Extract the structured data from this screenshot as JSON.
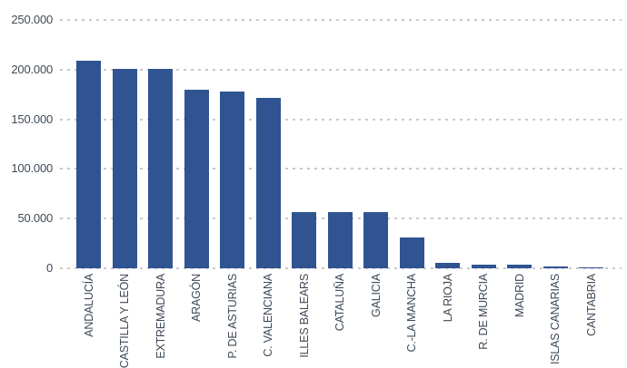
{
  "chart_data": {
    "type": "bar",
    "title": "",
    "xlabel": "",
    "ylabel": "",
    "categories": [
      "ANDALUCÍA",
      "CASTILLA Y LEÓN",
      "EXTREMADURA",
      "ARAGÓN",
      "P. DE ASTURIAS",
      "C. VALENCIANA",
      "ILLES BALEARS",
      "CATALUÑA",
      "GALICIA",
      "C.-LA MANCHA",
      "LA RIOJA",
      "R. DE MURCIA",
      "MADRID",
      "ISLAS CANARIAS",
      "CANTABRIA"
    ],
    "values": [
      209000,
      200500,
      200500,
      179500,
      177500,
      171500,
      56500,
      56500,
      56500,
      31000,
      5500,
      4000,
      4000,
      1500,
      1000
    ],
    "ylim": [
      0,
      250000
    ],
    "yticks": [
      {
        "label": "250.000",
        "value": 250000
      },
      {
        "label": "200.000",
        "value": 200000
      },
      {
        "label": "150.000",
        "value": 150000
      },
      {
        "label": "100.000",
        "value": 100000
      },
      {
        "label": "50.000",
        "value": 50000
      },
      {
        "label": "0",
        "value": 0
      }
    ],
    "grid": "horizontal-dashed",
    "legend": "none",
    "x_label_orientation": "vertical-bottom-to-top",
    "colors": {
      "bar": "#2F5491",
      "grid": "#C9C9C9",
      "axis_text": "#3E4A57",
      "background": "#FFFFFF"
    }
  }
}
